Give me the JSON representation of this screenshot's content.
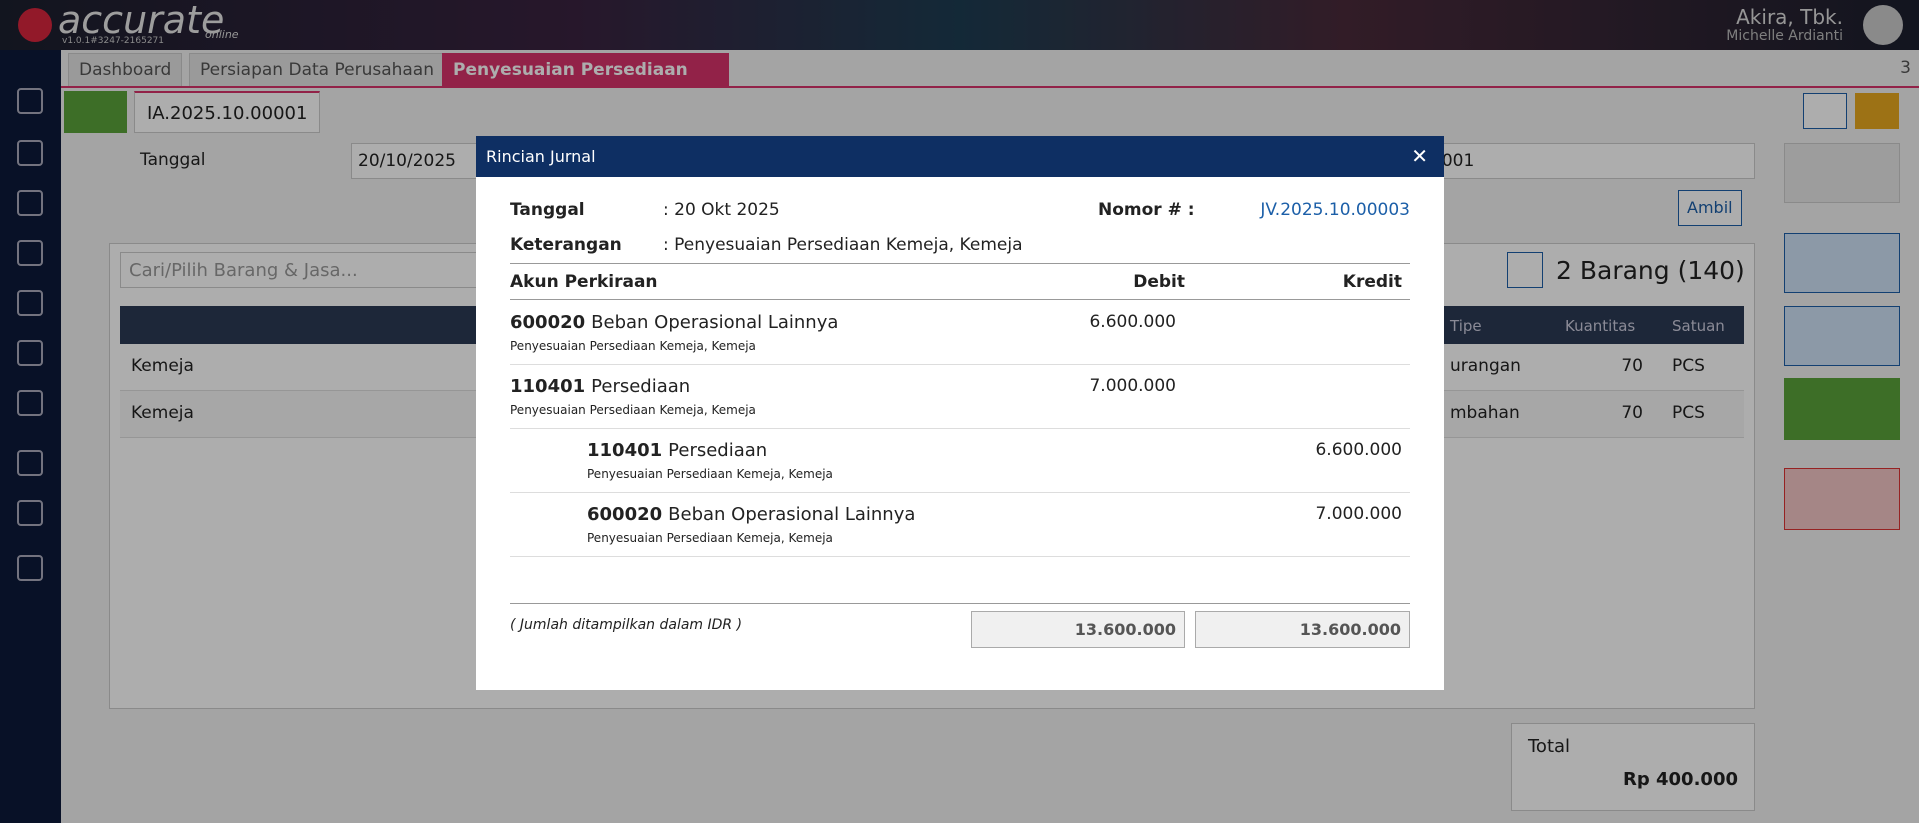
{
  "header": {
    "logo": "accurate",
    "logo_sub": "online",
    "version": "v1.0.1#3247-2165271",
    "company": "Akira, Tbk.",
    "user": "Michelle Ardianti"
  },
  "tabs": {
    "items": [
      "Dashboard",
      "Persiapan Data Perusahaan",
      "Penyesuaian Persediaan"
    ],
    "count": "3"
  },
  "subtab": "IA.2025.10.00001",
  "form": {
    "date_label": "Tanggal",
    "date_value": "20/10/2025",
    "number_value": "0001",
    "take_button": "Ambil",
    "search_placeholder": "Cari/Pilih Barang & Jasa...",
    "item_count": "2 Barang (140)"
  },
  "table": {
    "headers": [
      "Tipe",
      "Kuantitas",
      "Satuan"
    ],
    "rows": [
      [
        "Kemeja",
        "urangan",
        "70",
        "PCS"
      ],
      [
        "Kemeja",
        "mbahan",
        "70",
        "PCS"
      ]
    ]
  },
  "total": {
    "label": "Total",
    "value": "Rp 400.000"
  },
  "modal": {
    "title": "Rincian Jurnal",
    "date_label": "Tanggal",
    "date_value": ": 20 Okt 2025",
    "number_label": "Nomor # :",
    "number_value": "JV.2025.10.00003",
    "note_label": "Keterangan",
    "note_value": ": Penyesuaian Persediaan Kemeja, Kemeja",
    "columns": [
      "Akun Perkiraan",
      "Debit",
      "Kredit"
    ],
    "entries": [
      {
        "code": "600020",
        "name": "Beban Operasional Lainnya",
        "note": "Penyesuaian Persediaan Kemeja, Kemeja",
        "debit": "6.600.000",
        "credit": null
      },
      {
        "code": "110401",
        "name": "Persediaan",
        "note": "Penyesuaian Persediaan Kemeja, Kemeja",
        "debit": "7.000.000",
        "credit": null
      },
      {
        "code": "110401",
        "name": "Persediaan",
        "note": "Penyesuaian Persediaan Kemeja, Kemeja",
        "debit": null,
        "credit": "6.600.000"
      },
      {
        "code": "600020",
        "name": "Beban Operasional Lainnya",
        "note": "Penyesuaian Persediaan Kemeja, Kemeja",
        "debit": null,
        "credit": "7.000.000"
      }
    ],
    "currency_note": "( Jumlah ditampilkan dalam IDR )",
    "total_debit": "13.600.000",
    "total_credit": "13.600.000"
  }
}
